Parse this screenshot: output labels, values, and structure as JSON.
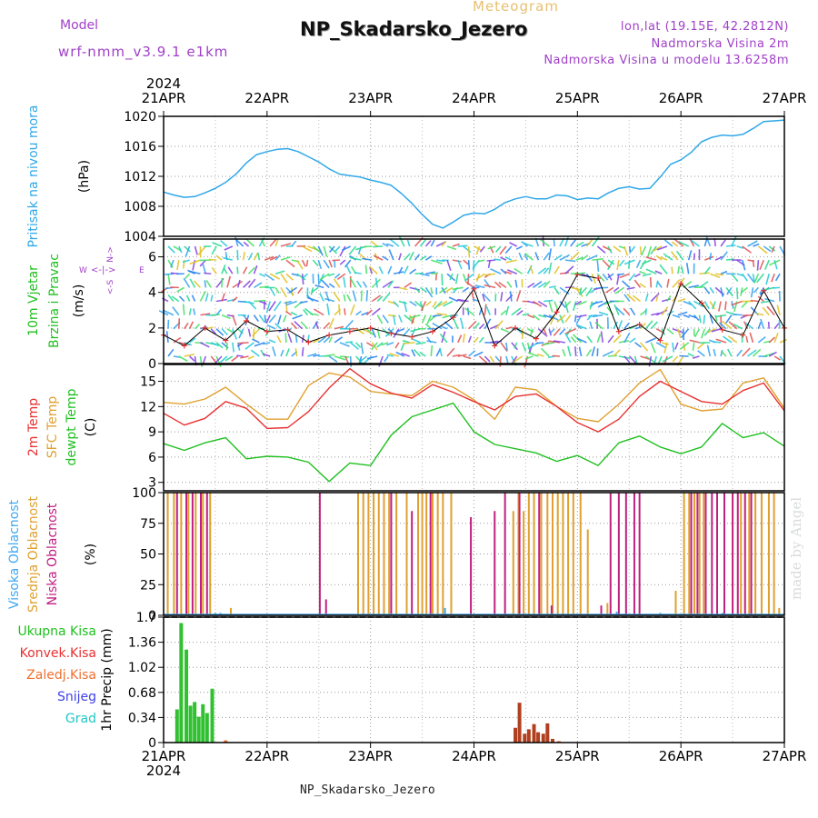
{
  "header": {
    "meteogram_word": "Meteogram",
    "title": "NP_Skadarsko_Jezero",
    "model_label": "Model",
    "model_name": "wrf-nmm_v3.9.1 e1km",
    "lonlat": "lon,lat (19.15E, 42.2812N)",
    "altitude": "Nadmorska Visina 2m",
    "model_altitude": "Nadmorska Visina u modelu 13.6258m"
  },
  "footer": {
    "station": "NP_Skadarsko_Jezero",
    "credit": "made by Angel"
  },
  "colors": {
    "pressure": "#30a8e8",
    "temp2m": "#e83030",
    "sfc": "#e0a030",
    "dew": "#20c020",
    "high_cloud": "#40a8f0",
    "mid_cloud": "#e0a030",
    "low_cloud": "#c02080"
  },
  "chart_data": [
    {
      "type": "line",
      "id": "pressure",
      "ylabel": [
        "Pritisak na nivou mora",
        "(hPa)"
      ],
      "ylim": [
        1004,
        1020
      ],
      "yticks": [
        "1004",
        "1008",
        "1012",
        "1016",
        "1020"
      ],
      "year": "2024",
      "xticks": [
        "21APR",
        "22APR",
        "23APR",
        "24APR",
        "25APR",
        "26APR",
        "27APR"
      ],
      "grid": true,
      "series": [
        {
          "x": [
            0,
            0.1,
            0.2,
            0.3,
            0.4,
            0.5,
            0.6,
            0.7,
            0.8,
            0.9,
            1.0,
            1.1,
            1.2,
            1.3,
            1.4,
            1.5,
            1.6,
            1.7,
            1.8,
            1.9,
            2.0,
            2.1,
            2.2,
            2.3,
            2.4,
            2.5,
            2.6,
            2.7,
            2.8,
            2.9,
            3.0,
            3.1,
            3.2,
            3.3,
            3.4,
            3.5,
            3.6,
            3.7,
            3.8,
            3.9,
            4.0,
            4.1,
            4.2,
            4.3,
            4.4,
            4.5,
            4.6,
            4.7,
            4.8,
            4.9,
            5.0,
            5.1,
            5.2,
            5.3,
            5.4,
            5.5,
            5.6,
            5.7,
            5.8,
            5.9,
            6.0
          ],
          "values": [
            1009.9,
            1009.5,
            1009.2,
            1009.3,
            1009.8,
            1010.4,
            1011.2,
            1012.3,
            1013.8,
            1014.9,
            1015.3,
            1015.6,
            1015.7,
            1015.3,
            1014.6,
            1013.9,
            1013.0,
            1012.3,
            1012.1,
            1011.9,
            1011.5,
            1011.2,
            1010.8,
            1009.7,
            1008.4,
            1006.9,
            1005.6,
            1005.1,
            1005.9,
            1006.8,
            1007.1,
            1007.0,
            1007.6,
            1008.5,
            1009.0,
            1009.3,
            1009.0,
            1009.0,
            1009.5,
            1009.4,
            1008.9,
            1009.1,
            1009.0,
            1009.8,
            1010.4,
            1010.6,
            1010.3,
            1010.4,
            1011.9,
            1013.6,
            1014.2,
            1015.2,
            1016.6,
            1017.2,
            1017.5,
            1017.4,
            1017.6,
            1018.4,
            1019.3,
            1019.4,
            1019.5
          ]
        }
      ]
    },
    {
      "type": "line",
      "id": "wind",
      "ylabel": [
        "10m Vjetar",
        "Brzina i Pravac",
        "(m/s)"
      ],
      "compass": {
        "n": "N->",
        "s": "<-S",
        "w": "W",
        "e": "E",
        "arrows": "<-|->"
      },
      "ylim": [
        0,
        7
      ],
      "yticks": [
        "0",
        "2",
        "4",
        "6"
      ],
      "series": [
        {
          "name": "speed",
          "x": [
            0,
            0.2,
            0.4,
            0.6,
            0.8,
            1.0,
            1.2,
            1.4,
            1.6,
            1.8,
            2.0,
            2.2,
            2.4,
            2.6,
            2.8,
            3.0,
            3.2,
            3.4,
            3.6,
            3.8,
            4.0,
            4.2,
            4.4,
            4.6,
            4.8,
            5.0,
            5.2,
            5.4,
            5.6,
            5.8,
            6.0
          ],
          "values": [
            1.6,
            1.0,
            2.0,
            1.3,
            2.4,
            1.8,
            1.9,
            1.2,
            1.6,
            1.8,
            2.0,
            1.7,
            1.5,
            1.8,
            2.6,
            4.2,
            1.0,
            2.0,
            1.4,
            2.9,
            5.0,
            4.8,
            1.8,
            2.2,
            1.3,
            4.5,
            3.4,
            1.9,
            1.6,
            4.1,
            2.0
          ]
        }
      ]
    },
    {
      "type": "line",
      "id": "temperature",
      "ylabel": [
        "2m Temp",
        "SFC Temp",
        "dewpt Temp",
        "(C)"
      ],
      "ylim": [
        2,
        17
      ],
      "yticks": [
        "3",
        "6",
        "9",
        "12",
        "15"
      ],
      "series": [
        {
          "name": "2m Temp",
          "x": [
            0,
            0.2,
            0.4,
            0.6,
            0.8,
            1.0,
            1.2,
            1.4,
            1.6,
            1.8,
            2.0,
            2.2,
            2.4,
            2.6,
            2.8,
            3.0,
            3.2,
            3.4,
            3.6,
            3.8,
            4.0,
            4.2,
            4.4,
            4.6,
            4.8,
            5.0,
            5.2,
            5.4,
            5.6,
            5.8,
            6.0
          ],
          "values": [
            11.2,
            9.8,
            10.6,
            12.6,
            11.8,
            9.4,
            9.5,
            11.4,
            14.2,
            16.5,
            14.7,
            13.6,
            13.0,
            14.6,
            13.7,
            12.6,
            11.6,
            13.2,
            13.5,
            12.0,
            10.1,
            9.0,
            10.5,
            13.2,
            15.0,
            13.8,
            12.6,
            12.3,
            13.9,
            14.8,
            11.5
          ]
        },
        {
          "name": "SFC Temp",
          "x": [
            0,
            0.2,
            0.4,
            0.6,
            0.8,
            1.0,
            1.2,
            1.4,
            1.6,
            1.8,
            2.0,
            2.2,
            2.4,
            2.6,
            2.8,
            3.0,
            3.2,
            3.4,
            3.6,
            3.8,
            4.0,
            4.2,
            4.4,
            4.6,
            4.8,
            5.0,
            5.2,
            5.4,
            5.6,
            5.8,
            6.0
          ],
          "values": [
            12.5,
            12.3,
            12.9,
            14.3,
            12.3,
            10.5,
            10.5,
            14.5,
            16.0,
            15.5,
            13.8,
            13.5,
            13.3,
            15.0,
            14.3,
            12.8,
            10.5,
            14.3,
            14.0,
            12.0,
            10.6,
            10.2,
            12.3,
            14.8,
            16.4,
            12.3,
            11.5,
            11.7,
            14.8,
            15.4,
            11.8
          ]
        },
        {
          "name": "dewpt Temp",
          "x": [
            0,
            0.2,
            0.4,
            0.6,
            0.8,
            1.0,
            1.2,
            1.4,
            1.6,
            1.8,
            2.0,
            2.2,
            2.4,
            2.6,
            2.8,
            3.0,
            3.2,
            3.4,
            3.6,
            3.8,
            4.0,
            4.2,
            4.4,
            4.6,
            4.8,
            5.0,
            5.2,
            5.4,
            5.6,
            5.8,
            6.0
          ],
          "values": [
            7.6,
            6.8,
            7.7,
            8.3,
            5.8,
            6.1,
            6.0,
            5.4,
            3.1,
            5.3,
            5.0,
            8.6,
            10.8,
            11.6,
            12.4,
            9.0,
            7.5,
            7.0,
            6.5,
            5.5,
            6.2,
            5.0,
            7.7,
            8.5,
            7.2,
            6.4,
            7.2,
            10.0,
            8.3,
            8.9,
            7.3
          ]
        }
      ]
    },
    {
      "type": "bar",
      "id": "cloud",
      "ylabel": [
        "Visoka Oblacnost",
        "Srednja Oblacnost",
        "Niska Oblacnost",
        "(%)"
      ],
      "ylim": [
        0,
        100
      ],
      "yticks": [
        "0",
        "25",
        "50",
        "75",
        "100"
      ],
      "series": [
        {
          "name": "Srednja Oblacnost",
          "x": [
            0.04,
            0.1,
            0.17,
            0.24,
            0.31,
            0.38,
            0.45,
            0.65,
            1.88,
            1.93,
            1.98,
            2.03,
            2.08,
            2.13,
            2.18,
            2.25,
            2.35,
            2.46,
            2.5,
            2.54,
            2.6,
            2.65,
            2.7,
            2.78,
            3.38,
            3.43,
            3.48,
            3.53,
            3.58,
            3.65,
            3.71,
            3.76,
            3.81,
            3.86,
            3.91,
            3.96,
            4.03,
            4.1,
            4.29,
            4.95,
            5.03,
            5.08,
            5.13,
            5.18,
            5.22,
            5.58,
            5.66,
            5.72,
            5.78,
            5.85,
            5.9,
            5.95
          ],
          "values": [
            100,
            100,
            100,
            100,
            100,
            100,
            100,
            6,
            100,
            100,
            100,
            100,
            100,
            100,
            100,
            100,
            100,
            100,
            100,
            100,
            100,
            100,
            100,
            100,
            85,
            100,
            85,
            100,
            100,
            100,
            100,
            100,
            100,
            100,
            100,
            100,
            100,
            70,
            10,
            20,
            100,
            100,
            100,
            100,
            100,
            100,
            100,
            100,
            100,
            100,
            100,
            6
          ]
        },
        {
          "name": "Niska Oblacnost",
          "x": [
            0.13,
            0.22,
            0.28,
            0.36,
            0.42,
            1.51,
            1.57,
            2.2,
            2.4,
            2.58,
            2.97,
            3.2,
            3.3,
            3.44,
            3.63,
            3.75,
            4.23,
            4.32,
            4.4,
            4.47,
            4.55,
            4.6,
            5.1,
            5.16,
            5.24,
            5.3,
            5.35,
            5.42,
            5.5,
            5.55,
            5.62,
            5.68
          ],
          "values": [
            100,
            100,
            100,
            100,
            100,
            100,
            13,
            100,
            85,
            100,
            80,
            85,
            100,
            100,
            100,
            8,
            8,
            100,
            100,
            100,
            100,
            100,
            100,
            100,
            100,
            100,
            100,
            100,
            100,
            100,
            100,
            100
          ]
        },
        {
          "name": "Visoka Oblacnost",
          "x": [
            0.5,
            0.55,
            2.72,
            4.38,
            4.8,
            5.4
          ],
          "values": [
            2,
            2,
            6,
            3,
            2,
            2
          ]
        }
      ]
    },
    {
      "type": "bar",
      "id": "precip",
      "ylabel": [
        "1hr Precip (mm)"
      ],
      "legend": [
        "Ukupna Kisa",
        "Konvek.Kisa",
        "Zaledj.Kisa",
        "Snijeg",
        "Grad"
      ],
      "ylim": [
        0,
        1.7
      ],
      "yticks": [
        "0",
        "0.34",
        "0.68",
        "1.02",
        "1.36",
        "1.7"
      ],
      "xticks": [
        "21APR",
        "22APR",
        "23APR",
        "24APR",
        "25APR",
        "26APR",
        "27APR"
      ],
      "year": "2024",
      "series": [
        {
          "name": "Ukupna Kisa",
          "x": [
            0.13,
            0.17,
            0.22,
            0.26,
            0.3,
            0.34,
            0.38,
            0.42,
            0.47
          ],
          "values": [
            0.45,
            1.62,
            1.26,
            0.5,
            0.55,
            0.35,
            0.52,
            0.4,
            0.73
          ]
        },
        {
          "name": "Konvek.Kisa",
          "x": [
            3.4,
            3.44,
            3.49,
            3.53,
            3.58,
            3.62,
            3.67,
            3.71,
            3.76
          ],
          "values": [
            0.2,
            0.54,
            0.12,
            0.18,
            0.25,
            0.14,
            0.12,
            0.26,
            0.05
          ]
        },
        {
          "name": "Zaledj.Kisa",
          "x": [
            0.6,
            3.82
          ],
          "values": [
            0.03,
            0.02
          ]
        }
      ]
    }
  ]
}
